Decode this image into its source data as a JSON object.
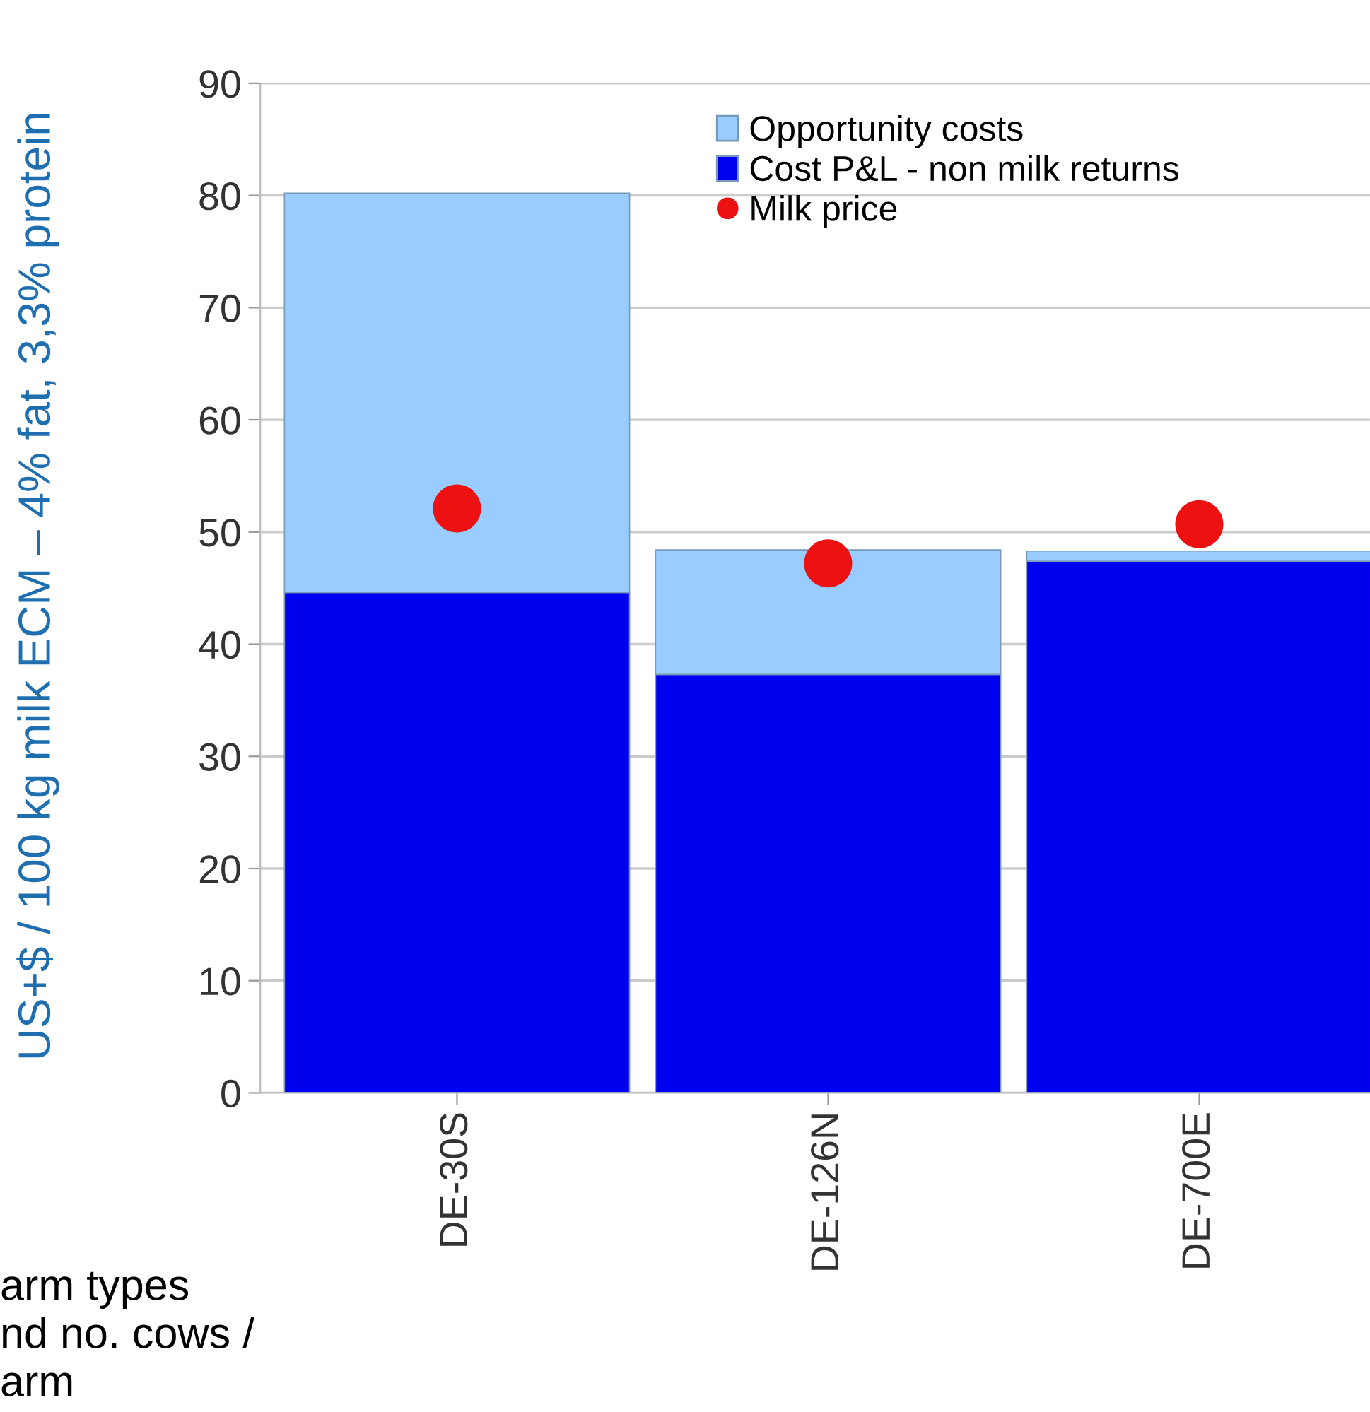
{
  "chart_data": {
    "type": "bar",
    "stacked": true,
    "ylabel": "US+$ / 100 kg milk ECM – 4% fat, 3,3% protein",
    "categories": [
      "DE-30S",
      "DE-126N",
      "DE-700E"
    ],
    "series": [
      {
        "name": "Cost P&L - non milk returns",
        "color": "#0000f0",
        "values": [
          44.6,
          37.3,
          47.4
        ]
      },
      {
        "name": "Opportunity costs",
        "color": "#99ccff",
        "values": [
          35.6,
          11.1,
          0.9
        ]
      },
      {
        "name": "Milk price",
        "type": "scatter",
        "color": "#ee1111",
        "values": [
          52.1,
          47.2,
          50.7
        ]
      }
    ],
    "ylim": [
      0,
      90
    ],
    "yticks": [
      0,
      10,
      20,
      30,
      40,
      50,
      60,
      70,
      80,
      90
    ],
    "grid": "y",
    "legend": "top",
    "marker": "circle",
    "annotations": [
      "arm types\nnd no. cows /\narm"
    ]
  }
}
